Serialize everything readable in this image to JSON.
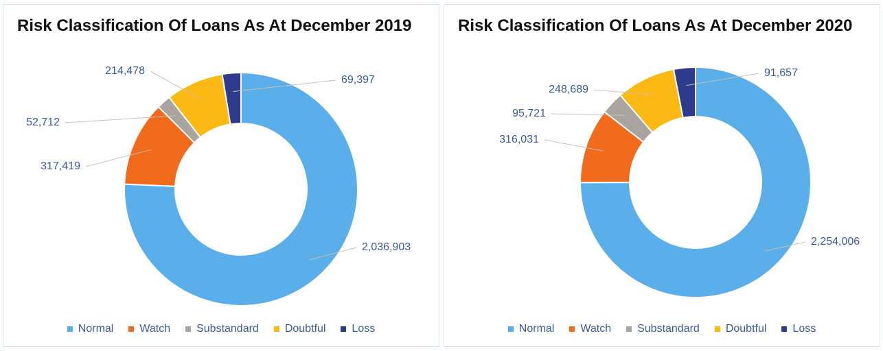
{
  "chart_data": [
    {
      "type": "pie",
      "title": "Risk Classification Of Loans As At December 2019",
      "categories": [
        "Normal",
        "Watch",
        "Substandard",
        "Doubtful",
        "Loss"
      ],
      "values": [
        2036903,
        317419,
        52712,
        214478,
        69397
      ],
      "value_labels": [
        "2,036,903",
        "317,419",
        "52,712",
        "214,478",
        "69,397"
      ],
      "colors": [
        "#5aaeea",
        "#f26a1b",
        "#a9a49d",
        "#fdb913",
        "#2e3a8c"
      ],
      "legend": "bottom"
    },
    {
      "type": "pie",
      "title": "Risk Classification Of Loans As At December 2020",
      "categories": [
        "Normal",
        "Watch",
        "Substandard",
        "Doubtful",
        "Loss"
      ],
      "values": [
        2254006,
        316031,
        95721,
        248689,
        91657
      ],
      "value_labels": [
        "2,254,006",
        "316,031",
        "95,721",
        "248,689",
        "91,657"
      ],
      "colors": [
        "#5aaeea",
        "#f26a1b",
        "#a9a49d",
        "#fdb913",
        "#2e3a8c"
      ],
      "legend": "bottom"
    }
  ]
}
